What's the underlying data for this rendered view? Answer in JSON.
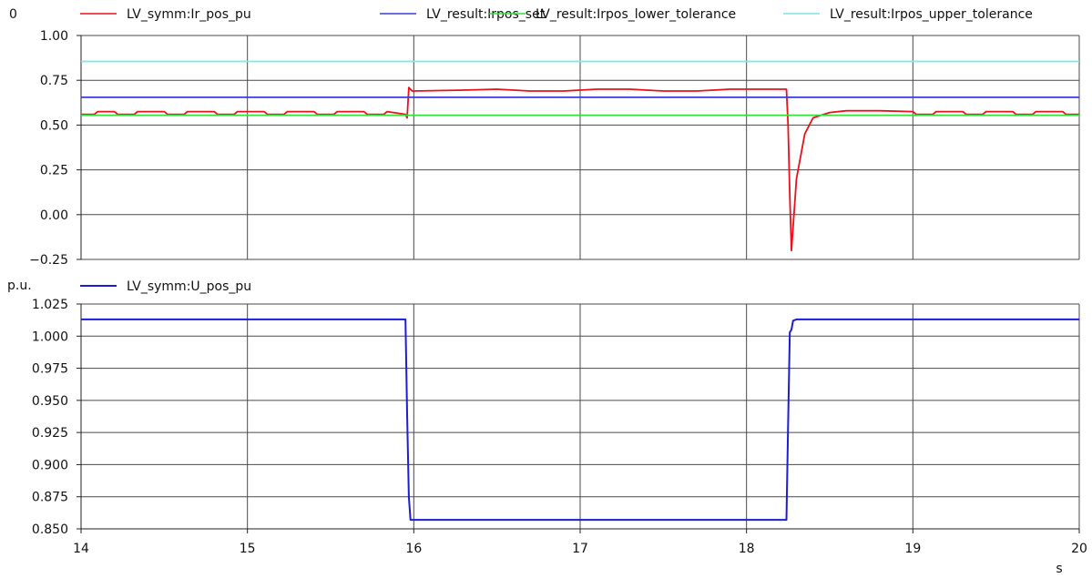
{
  "chart_data": [
    {
      "type": "line",
      "unit_label": "0",
      "xlim": [
        14,
        20
      ],
      "ylim": [
        -0.25,
        1.0
      ],
      "yticks": [
        "1.00",
        "0.75",
        "0.50",
        "0.25",
        "0.00",
        "−0.25"
      ],
      "ytick_values": [
        1.0,
        0.75,
        0.5,
        0.25,
        0.0,
        -0.25
      ],
      "grid": true,
      "legend_position": "top",
      "series": [
        {
          "name": "LV_symm:Ir_pos_pu",
          "color": "#e8121b",
          "x": [
            14.0,
            14.08,
            14.1,
            14.2,
            14.22,
            14.32,
            14.34,
            14.5,
            14.52,
            14.62,
            14.64,
            14.8,
            14.82,
            14.92,
            14.94,
            15.1,
            15.12,
            15.22,
            15.24,
            15.4,
            15.42,
            15.52,
            15.54,
            15.7,
            15.72,
            15.82,
            15.84,
            15.95,
            15.96,
            15.97,
            15.99,
            16.0,
            16.3,
            16.5,
            16.7,
            16.9,
            17.1,
            17.3,
            17.5,
            17.7,
            17.9,
            18.0,
            18.24,
            18.25,
            18.26,
            18.27,
            18.3,
            18.35,
            18.4,
            18.5,
            18.6,
            18.8,
            19.0,
            19.02,
            19.12,
            19.14,
            19.3,
            19.32,
            19.42,
            19.44,
            19.6,
            19.62,
            19.72,
            19.74,
            19.9,
            19.92,
            20.0
          ],
          "y": [
            0.56,
            0.56,
            0.575,
            0.575,
            0.56,
            0.56,
            0.575,
            0.575,
            0.56,
            0.56,
            0.575,
            0.575,
            0.56,
            0.56,
            0.575,
            0.575,
            0.56,
            0.56,
            0.575,
            0.575,
            0.56,
            0.56,
            0.575,
            0.575,
            0.56,
            0.56,
            0.575,
            0.56,
            0.54,
            0.71,
            0.69,
            0.69,
            0.695,
            0.7,
            0.69,
            0.69,
            0.7,
            0.7,
            0.69,
            0.69,
            0.7,
            0.7,
            0.7,
            0.5,
            0.1,
            -0.2,
            0.2,
            0.45,
            0.54,
            0.57,
            0.58,
            0.58,
            0.575,
            0.56,
            0.56,
            0.575,
            0.575,
            0.56,
            0.56,
            0.575,
            0.575,
            0.56,
            0.56,
            0.575,
            0.575,
            0.56,
            0.56
          ]
        },
        {
          "name": "LV_result:Irpos_set",
          "color": "#3b3bd9",
          "x": [
            14,
            20
          ],
          "y": [
            0.655,
            0.655
          ]
        },
        {
          "name": "LV_result:Irpos_lower_tolerance",
          "color": "#33e03a",
          "x": [
            14,
            20
          ],
          "y": [
            0.555,
            0.555
          ]
        },
        {
          "name": "LV_result:Irpos_upper_tolerance",
          "color": "#7fe6ea",
          "x": [
            14,
            20
          ],
          "y": [
            0.855,
            0.855
          ]
        }
      ]
    },
    {
      "type": "line",
      "unit_label": "p.u.",
      "xlim": [
        14,
        20
      ],
      "ylim": [
        0.85,
        1.025
      ],
      "yticks": [
        "1.025",
        "1.000",
        "0.975",
        "0.950",
        "0.925",
        "0.900",
        "0.875",
        "0.850"
      ],
      "ytick_values": [
        1.025,
        1.0,
        0.975,
        0.95,
        0.925,
        0.9,
        0.875,
        0.85
      ],
      "xticks": [
        "14",
        "15",
        "16",
        "17",
        "18",
        "19",
        "20"
      ],
      "xtick_values": [
        14,
        15,
        16,
        17,
        18,
        19,
        20
      ],
      "xlabel": "s",
      "grid": true,
      "legend_position": "top",
      "series": [
        {
          "name": "LV_symm:U_pos_pu",
          "color": "#1d1dd6",
          "x": [
            14.0,
            15.95,
            15.96,
            15.97,
            15.98,
            16.0,
            16.5,
            17.0,
            17.5,
            18.0,
            18.24,
            18.25,
            18.26,
            18.27,
            18.28,
            18.3,
            18.6,
            19.0,
            19.5,
            20.0
          ],
          "y": [
            1.013,
            1.013,
            0.94,
            0.875,
            0.857,
            0.857,
            0.857,
            0.857,
            0.857,
            0.857,
            0.857,
            0.93,
            1.003,
            1.005,
            1.012,
            1.013,
            1.013,
            1.013,
            1.013,
            1.013
          ]
        }
      ]
    }
  ]
}
